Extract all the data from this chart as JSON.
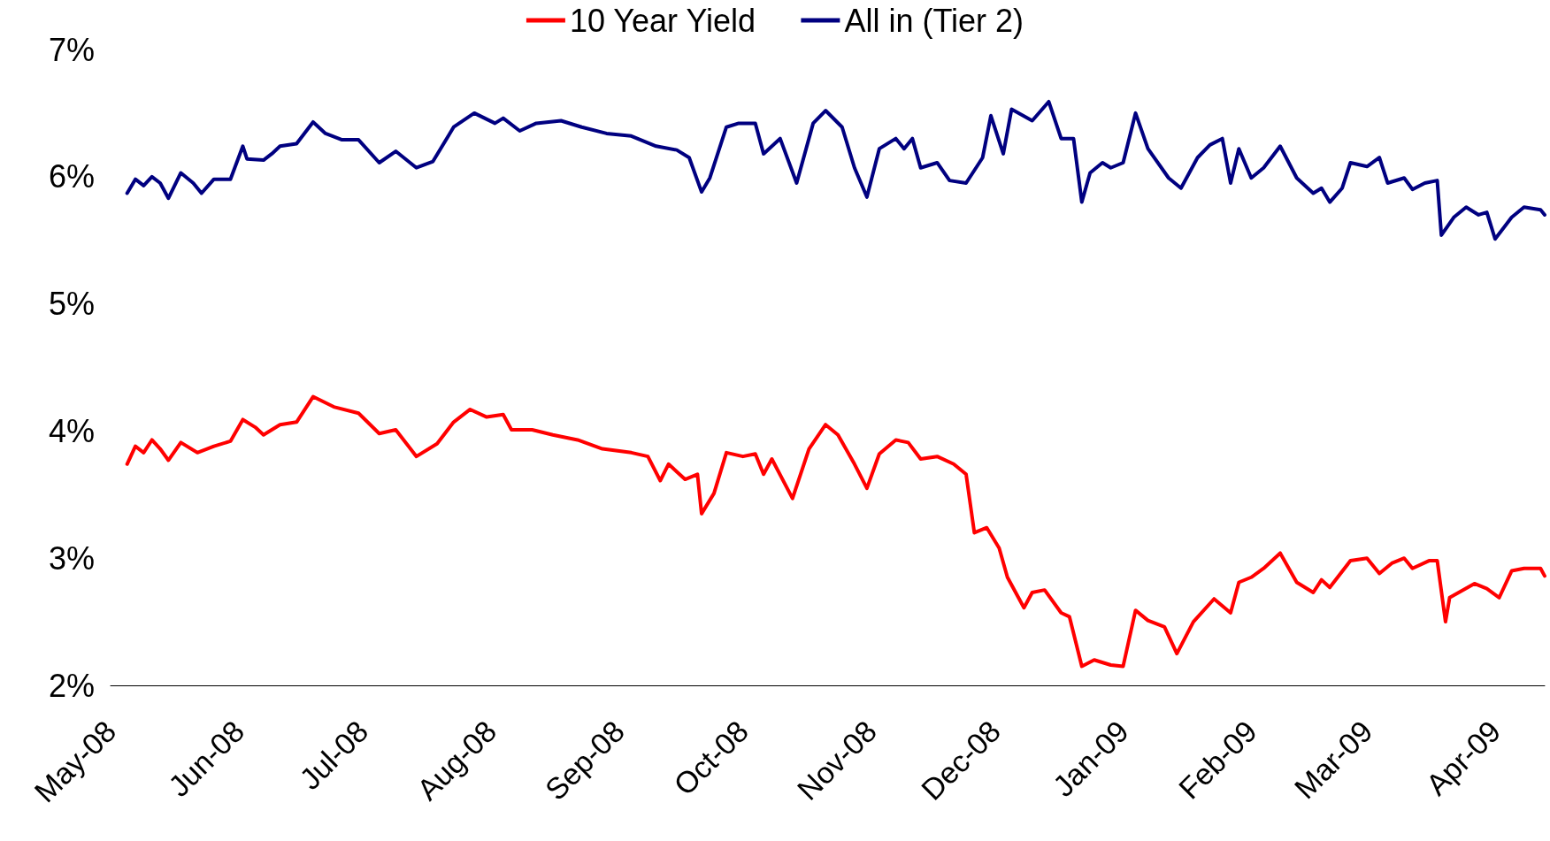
{
  "chart_data": {
    "type": "line",
    "legend": "top",
    "marker": "none",
    "line_style": "solid",
    "grid": false,
    "xticks": [
      {
        "value": "2008-05-01",
        "label": "May-08"
      },
      {
        "value": "2008-06-01",
        "label": "Jun-08"
      },
      {
        "value": "2008-07-01",
        "label": "Jul-08"
      },
      {
        "value": "2008-08-01",
        "label": "Aug-08"
      },
      {
        "value": "2008-09-01",
        "label": "Sep-08"
      },
      {
        "value": "2008-10-01",
        "label": "Oct-08"
      },
      {
        "value": "2008-11-01",
        "label": "Nov-08"
      },
      {
        "value": "2008-12-01",
        "label": "Dec-08"
      },
      {
        "value": "2009-01-01",
        "label": "Jan-09"
      },
      {
        "value": "2009-02-01",
        "label": "Feb-09"
      },
      {
        "value": "2009-03-01",
        "label": "Mar-09"
      },
      {
        "value": "2009-04-01",
        "label": "Apr-09"
      }
    ],
    "xlim": [
      "2008-05-01",
      "2009-04-13"
    ],
    "ylim": [
      2,
      7
    ],
    "yticks": [
      {
        "value": 2,
        "label": "2%"
      },
      {
        "value": 3,
        "label": "3%"
      },
      {
        "value": 4,
        "label": "4%"
      },
      {
        "value": 5,
        "label": "5%"
      },
      {
        "value": 6,
        "label": "6%"
      },
      {
        "value": 7,
        "label": "7%"
      }
    ],
    "series": [
      {
        "name": "10 Year Yield",
        "color": "#ff0000",
        "x": [
          "2008-05-05",
          "2008-05-07",
          "2008-05-09",
          "2008-05-11",
          "2008-05-13",
          "2008-05-15",
          "2008-05-18",
          "2008-05-22",
          "2008-05-26",
          "2008-05-30",
          "2008-06-02",
          "2008-06-05",
          "2008-06-07",
          "2008-06-11",
          "2008-06-15",
          "2008-06-19",
          "2008-06-24",
          "2008-06-30",
          "2008-07-05",
          "2008-07-09",
          "2008-07-14",
          "2008-07-19",
          "2008-07-23",
          "2008-07-27",
          "2008-07-31",
          "2008-08-04",
          "2008-08-06",
          "2008-08-11",
          "2008-08-16",
          "2008-08-22",
          "2008-08-28",
          "2008-09-04",
          "2008-09-08",
          "2008-09-11",
          "2008-09-13",
          "2008-09-17",
          "2008-09-20",
          "2008-09-21",
          "2008-09-24",
          "2008-09-27",
          "2008-10-01",
          "2008-10-04",
          "2008-10-06",
          "2008-10-08",
          "2008-10-13",
          "2008-10-17",
          "2008-10-21",
          "2008-10-24",
          "2008-10-28",
          "2008-10-31",
          "2008-11-03",
          "2008-11-07",
          "2008-11-10",
          "2008-11-13",
          "2008-11-17",
          "2008-11-21",
          "2008-11-24",
          "2008-11-26",
          "2008-11-29",
          "2008-12-02",
          "2008-12-04",
          "2008-12-08",
          "2008-12-10",
          "2008-12-13",
          "2008-12-17",
          "2008-12-19",
          "2008-12-22",
          "2008-12-25",
          "2008-12-29",
          "2009-01-01",
          "2009-01-04",
          "2009-01-07",
          "2009-01-11",
          "2009-01-14",
          "2009-01-18",
          "2009-01-23",
          "2009-01-27",
          "2009-01-29",
          "2009-02-01",
          "2009-02-04",
          "2009-02-08",
          "2009-02-12",
          "2009-02-16",
          "2009-02-18",
          "2009-02-20",
          "2009-02-25",
          "2009-03-01",
          "2009-03-04",
          "2009-03-07",
          "2009-03-10",
          "2009-03-12",
          "2009-03-16",
          "2009-03-18",
          "2009-03-20",
          "2009-03-21",
          "2009-03-27",
          "2009-03-30",
          "2009-04-02",
          "2009-04-05",
          "2009-04-08",
          "2009-04-12",
          "2009-04-13"
        ],
        "values": [
          3.74,
          3.88,
          3.83,
          3.93,
          3.86,
          3.77,
          3.91,
          3.83,
          3.88,
          3.92,
          4.09,
          4.03,
          3.97,
          4.05,
          4.07,
          4.27,
          4.19,
          4.14,
          3.98,
          4.01,
          3.8,
          3.9,
          4.07,
          4.17,
          4.11,
          4.13,
          4.01,
          4.01,
          3.97,
          3.93,
          3.86,
          3.83,
          3.8,
          3.61,
          3.74,
          3.62,
          3.66,
          3.35,
          3.51,
          3.83,
          3.8,
          3.82,
          3.66,
          3.78,
          3.47,
          3.86,
          4.05,
          3.97,
          3.74,
          3.55,
          3.82,
          3.93,
          3.91,
          3.78,
          3.8,
          3.74,
          3.66,
          3.2,
          3.24,
          3.08,
          2.85,
          2.61,
          2.73,
          2.75,
          2.57,
          2.54,
          2.15,
          2.2,
          2.16,
          2.15,
          2.59,
          2.51,
          2.46,
          2.25,
          2.5,
          2.68,
          2.57,
          2.81,
          2.85,
          2.92,
          3.04,
          2.81,
          2.73,
          2.83,
          2.77,
          2.98,
          3.0,
          2.88,
          2.96,
          3.0,
          2.92,
          2.98,
          2.98,
          2.5,
          2.69,
          2.8,
          2.76,
          2.69,
          2.9,
          2.92,
          2.92,
          2.86
        ]
      },
      {
        "name": "All in (Tier 2)",
        "color": "#000080",
        "x": [
          "2008-05-05",
          "2008-05-07",
          "2008-05-09",
          "2008-05-11",
          "2008-05-13",
          "2008-05-15",
          "2008-05-18",
          "2008-05-21",
          "2008-05-23",
          "2008-05-26",
          "2008-05-30",
          "2008-06-02",
          "2008-06-03",
          "2008-06-07",
          "2008-06-09",
          "2008-06-11",
          "2008-06-15",
          "2008-06-19",
          "2008-06-22",
          "2008-06-26",
          "2008-06-30",
          "2008-07-05",
          "2008-07-09",
          "2008-07-14",
          "2008-07-18",
          "2008-07-23",
          "2008-07-28",
          "2008-08-02",
          "2008-08-04",
          "2008-08-08",
          "2008-08-12",
          "2008-08-18",
          "2008-08-23",
          "2008-08-29",
          "2008-09-04",
          "2008-09-10",
          "2008-09-15",
          "2008-09-18",
          "2008-09-21",
          "2008-09-23",
          "2008-09-27",
          "2008-09-30",
          "2008-10-04",
          "2008-10-06",
          "2008-10-10",
          "2008-10-14",
          "2008-10-18",
          "2008-10-21",
          "2008-10-25",
          "2008-10-28",
          "2008-10-31",
          "2008-11-03",
          "2008-11-07",
          "2008-11-09",
          "2008-11-11",
          "2008-11-13",
          "2008-11-17",
          "2008-11-20",
          "2008-11-24",
          "2008-11-28",
          "2008-11-30",
          "2008-12-03",
          "2008-12-05",
          "2008-12-10",
          "2008-12-14",
          "2008-12-17",
          "2008-12-20",
          "2008-12-22",
          "2008-12-24",
          "2008-12-27",
          "2008-12-29",
          "2009-01-01",
          "2009-01-04",
          "2009-01-07",
          "2009-01-12",
          "2009-01-15",
          "2009-01-19",
          "2009-01-22",
          "2009-01-25",
          "2009-01-27",
          "2009-01-29",
          "2009-02-01",
          "2009-02-04",
          "2009-02-08",
          "2009-02-12",
          "2009-02-16",
          "2009-02-18",
          "2009-02-20",
          "2009-02-23",
          "2009-02-25",
          "2009-03-01",
          "2009-03-04",
          "2009-03-06",
          "2009-03-10",
          "2009-03-12",
          "2009-03-15",
          "2009-03-18",
          "2009-03-19",
          "2009-03-22",
          "2009-03-25",
          "2009-03-28",
          "2009-03-30",
          "2009-04-01",
          "2009-04-05",
          "2009-04-08",
          "2009-04-12",
          "2009-04-13"
        ],
        "values": [
          5.87,
          5.98,
          5.93,
          6.0,
          5.95,
          5.83,
          6.03,
          5.95,
          5.87,
          5.98,
          5.98,
          6.24,
          6.14,
          6.13,
          6.18,
          6.24,
          6.26,
          6.43,
          6.34,
          6.29,
          6.29,
          6.11,
          6.2,
          6.07,
          6.12,
          6.39,
          6.5,
          6.42,
          6.46,
          6.36,
          6.42,
          6.44,
          6.39,
          6.34,
          6.32,
          6.24,
          6.21,
          6.15,
          5.88,
          5.99,
          6.39,
          6.42,
          6.42,
          6.18,
          6.3,
          5.95,
          6.42,
          6.52,
          6.39,
          6.07,
          5.84,
          6.22,
          6.3,
          6.22,
          6.3,
          6.07,
          6.11,
          5.97,
          5.95,
          6.15,
          6.48,
          6.18,
          6.53,
          6.44,
          6.59,
          6.3,
          6.3,
          5.8,
          6.03,
          6.11,
          6.07,
          6.11,
          6.5,
          6.22,
          5.99,
          5.91,
          6.15,
          6.25,
          6.3,
          5.95,
          6.22,
          5.99,
          6.07,
          6.24,
          5.99,
          5.87,
          5.91,
          5.8,
          5.91,
          6.11,
          6.08,
          6.15,
          5.95,
          5.99,
          5.9,
          5.95,
          5.97,
          5.54,
          5.68,
          5.76,
          5.7,
          5.72,
          5.51,
          5.68,
          5.76,
          5.74,
          5.7
        ]
      }
    ]
  }
}
